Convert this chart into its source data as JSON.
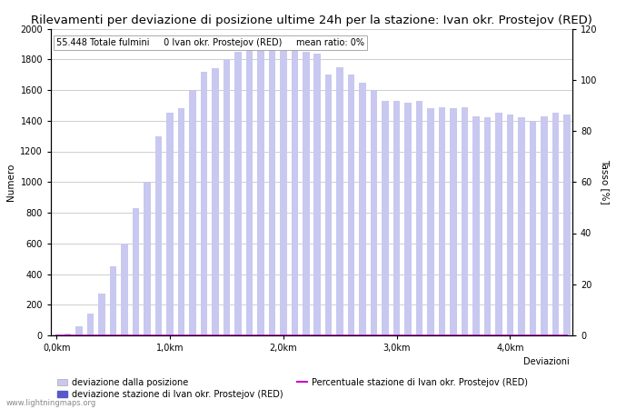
{
  "title": "Rilevamenti per deviazione di posizione ultime 24h per la stazione: Ivan okr. Prostejov (RED)",
  "subtitle": "55.448 Totale fulmini     0 Ivan okr. Prostejov (RED)     mean ratio: 0%",
  "ylabel_left": "Numero",
  "ylabel_right": "Tasso [%]",
  "ylim_left": [
    0,
    2000
  ],
  "ylim_right": [
    0,
    120
  ],
  "xtick_positions": [
    0,
    10,
    20,
    30,
    40
  ],
  "xtick_labels": [
    "0,0km",
    "1,0km",
    "2,0km",
    "3,0km",
    "4,0km"
  ],
  "ytick_left": [
    0,
    200,
    400,
    600,
    800,
    1000,
    1200,
    1400,
    1600,
    1800,
    2000
  ],
  "ytick_right": [
    0,
    20,
    40,
    60,
    80,
    100,
    120
  ],
  "bar_values": [
    5,
    10,
    60,
    140,
    270,
    450,
    600,
    830,
    1000,
    1300,
    1450,
    1480,
    1600,
    1720,
    1740,
    1800,
    1850,
    1870,
    1880,
    1890,
    1900,
    1870,
    1850,
    1840,
    1700,
    1750,
    1700,
    1650,
    1600,
    1530,
    1530,
    1520,
    1530,
    1480,
    1490,
    1480,
    1490,
    1430,
    1420,
    1450,
    1440,
    1420,
    1400,
    1430,
    1450,
    1440
  ],
  "bar_color_light": "#c8c8f0",
  "bar_color_dark": "#5858c8",
  "station_bar_values": [
    0,
    0,
    0,
    0,
    0,
    0,
    0,
    0,
    0,
    0,
    0,
    0,
    0,
    0,
    0,
    0,
    0,
    0,
    0,
    0,
    0,
    0,
    0,
    0,
    0,
    0,
    0,
    0,
    0,
    0,
    0,
    0,
    0,
    0,
    0,
    0,
    0,
    0,
    0,
    0,
    0,
    0,
    0,
    0,
    0,
    0
  ],
  "ratio_values": [
    0,
    0,
    0,
    0,
    0,
    0,
    0,
    0,
    0,
    0,
    0,
    0,
    0,
    0,
    0,
    0,
    0,
    0,
    0,
    0,
    0,
    0,
    0,
    0,
    0,
    0,
    0,
    0,
    0,
    0,
    0,
    0,
    0,
    0,
    0,
    0,
    0,
    0,
    0,
    0,
    0,
    0,
    0,
    0,
    0,
    0
  ],
  "line_color": "#cc00cc",
  "background_color": "#ffffff",
  "grid_color": "#bbbbbb",
  "legend_label_light": "deviazione dalla posizione",
  "legend_label_dark": "deviazione stazione di Ivan okr. Prostejov (RED)",
  "legend_label_line": "Percentuale stazione di Ivan okr. Prostejov (RED)",
  "legend_label_xaxis": "Deviazioni",
  "watermark": "www.lightningmaps.org",
  "title_fontsize": 9.5,
  "label_fontsize": 7.5,
  "tick_fontsize": 7,
  "subtitle_fontsize": 7,
  "legend_fontsize": 7
}
